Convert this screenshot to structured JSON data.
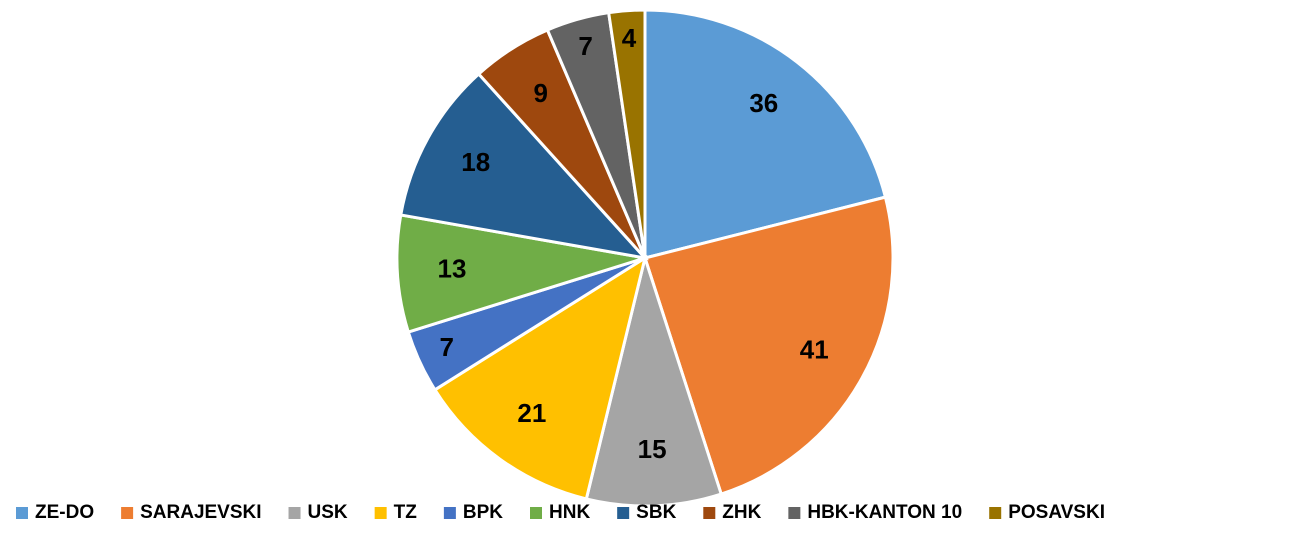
{
  "chart_data": {
    "type": "pie",
    "categories": [
      "ZE-DO",
      "SARAJEVSKI",
      "USK",
      "TZ",
      "BPK",
      "HNK",
      "SBK",
      "ZHK",
      "HBK-KANTON 10",
      "POSAVSKI"
    ],
    "values": [
      36,
      41,
      15,
      21,
      7,
      13,
      18,
      9,
      7,
      4
    ],
    "colors": [
      "#5b9bd5",
      "#ed7d31",
      "#a5a5a5",
      "#ffc000",
      "#4472c4",
      "#70ad47",
      "#255e91",
      "#9e480e",
      "#636363",
      "#997300"
    ],
    "legend": "bottom"
  }
}
